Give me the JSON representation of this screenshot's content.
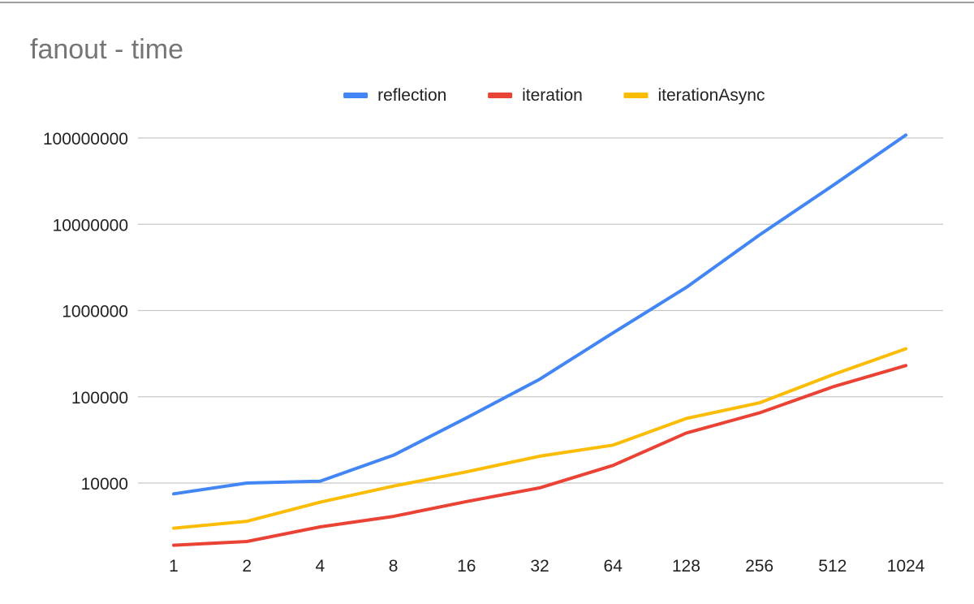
{
  "chart_data": {
    "type": "line",
    "title": "fanout - time",
    "xlabel": "",
    "ylabel": "",
    "y_scale": "log",
    "ylim": [
      1600,
      110000000
    ],
    "grid": true,
    "legend_position": "top",
    "categories": [
      "1",
      "2",
      "4",
      "8",
      "16",
      "32",
      "64",
      "128",
      "256",
      "512",
      "1024"
    ],
    "y_ticks": [
      "10000",
      "100000",
      "1000000",
      "10000000",
      "100000000"
    ],
    "y_tick_values": [
      10000,
      100000,
      1000000,
      10000000,
      100000000
    ],
    "series": [
      {
        "name": "reflection",
        "color": "#4285f4",
        "values": [
          7500,
          10000,
          10500,
          21000,
          57000,
          160000,
          550000,
          1850000,
          7500000,
          28000000,
          108000000
        ]
      },
      {
        "name": "iteration",
        "color": "#ea4335",
        "values": [
          1900,
          2100,
          3100,
          4100,
          6100,
          8800,
          16000,
          38000,
          65000,
          130000,
          230000
        ]
      },
      {
        "name": "iterationAsync",
        "color": "#fbbc04",
        "values": [
          3000,
          3600,
          6000,
          9200,
          13500,
          20500,
          27500,
          56000,
          85000,
          180000,
          360000
        ]
      }
    ]
  }
}
